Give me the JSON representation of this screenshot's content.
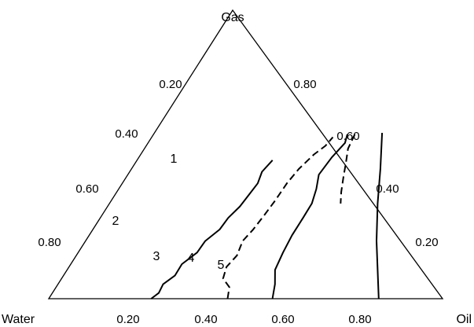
{
  "chart_data": {
    "type": "ternary",
    "vertices": {
      "top": "Gas",
      "left": "Water",
      "right": "Oil"
    },
    "ticks": {
      "bottom": [
        "0.20",
        "0.40",
        "0.60",
        "0.80"
      ],
      "left": [
        "0.20",
        "0.40",
        "0.60",
        "0.80"
      ],
      "right": [
        "0.80",
        "0.60",
        "0.40",
        "0.20"
      ]
    },
    "colors": {
      "line": "#000000",
      "background": "#ffffff"
    },
    "series": [
      {
        "name": "1",
        "style": "solid",
        "points": [
          {
            "gas": 0.575,
            "oil": 0.578
          },
          {
            "gas": 0.45,
            "oil": 0.632
          },
          {
            "gas": 0.33,
            "oil": 0.681
          },
          {
            "gas": 0.2,
            "oil": 0.739
          },
          {
            "gas": 0.0,
            "oil": 0.838
          }
        ]
      },
      {
        "name": "2",
        "style": "solid",
        "points": [
          {
            "gas": 0.0,
            "oil": 0.26
          },
          {
            "gas": 0.02,
            "oil": 0.27
          },
          {
            "gas": 0.05,
            "oil": 0.267
          },
          {
            "gas": 0.08,
            "oil": 0.283
          },
          {
            "gas": 0.12,
            "oil": 0.282
          },
          {
            "gas": 0.16,
            "oil": 0.302
          },
          {
            "gas": 0.2,
            "oil": 0.304
          },
          {
            "gas": 0.24,
            "oil": 0.322
          },
          {
            "gas": 0.28,
            "oil": 0.325
          },
          {
            "gas": 0.32,
            "oil": 0.336
          },
          {
            "gas": 0.36,
            "oil": 0.34
          },
          {
            "gas": 0.4,
            "oil": 0.344
          },
          {
            "gas": 0.44,
            "oil": 0.336
          },
          {
            "gas": 0.48,
            "oil": 0.344
          }
        ]
      },
      {
        "name": "3",
        "style": "dashed",
        "points": [
          {
            "gas": 0.0,
            "oil": 0.454
          },
          {
            "gas": 0.04,
            "oil": 0.44
          },
          {
            "gas": 0.07,
            "oil": 0.41
          },
          {
            "gas": 0.11,
            "oil": 0.4
          },
          {
            "gas": 0.15,
            "oil": 0.408
          },
          {
            "gas": 0.2,
            "oil": 0.399
          },
          {
            "gas": 0.24,
            "oil": 0.407
          },
          {
            "gas": 0.29,
            "oil": 0.412
          },
          {
            "gas": 0.34,
            "oil": 0.416
          },
          {
            "gas": 0.4,
            "oil": 0.418
          },
          {
            "gas": 0.45,
            "oil": 0.425
          },
          {
            "gas": 0.5,
            "oil": 0.44
          },
          {
            "gas": 0.53,
            "oil": 0.455
          },
          {
            "gas": 0.56,
            "oil": 0.46
          }
        ]
      },
      {
        "name": "4",
        "style": "solid",
        "points": [
          {
            "gas": 0.0,
            "oil": 0.568
          },
          {
            "gas": 0.05,
            "oil": 0.551
          },
          {
            "gas": 0.1,
            "oil": 0.528
          },
          {
            "gas": 0.16,
            "oil": 0.52
          },
          {
            "gas": 0.22,
            "oil": 0.515
          },
          {
            "gas": 0.28,
            "oil": 0.515
          },
          {
            "gas": 0.33,
            "oil": 0.514
          },
          {
            "gas": 0.38,
            "oil": 0.502
          },
          {
            "gas": 0.43,
            "oil": 0.485
          },
          {
            "gas": 0.49,
            "oil": 0.49
          },
          {
            "gas": 0.54,
            "oil": 0.5
          },
          {
            "gas": 0.57,
            "oil": 0.492
          }
        ]
      },
      {
        "name": "5",
        "style": "dashed",
        "points": [
          {
            "gas": 0.57,
            "oil": 0.511
          },
          {
            "gas": 0.52,
            "oil": 0.517
          },
          {
            "gas": 0.47,
            "oil": 0.535
          },
          {
            "gas": 0.42,
            "oil": 0.552
          },
          {
            "gas": 0.37,
            "oil": 0.57
          },
          {
            "gas": 0.33,
            "oil": 0.587
          }
        ]
      }
    ]
  }
}
